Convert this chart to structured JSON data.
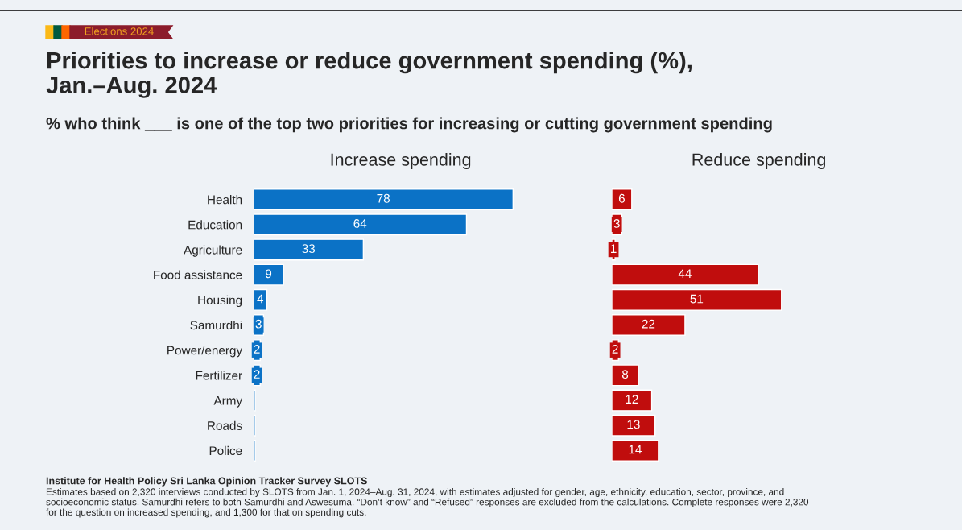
{
  "chart_data": [
    {
      "type": "bar",
      "orientation": "horizontal",
      "title": "Priorities to increase or reduce government spending (%), Jan.–Aug. 2024",
      "subtitle": "% who think ___ is one of the top two priorities for increasing or cutting government spending",
      "xlabel": "Increase spending",
      "categories": [
        "Health",
        "Education",
        "Agriculture",
        "Food assistance",
        "Housing",
        "Samurdhi",
        "Power/energy",
        "Fertilizer",
        "Army",
        "Roads",
        "Police"
      ],
      "values": [
        78,
        64,
        33,
        9,
        4,
        3,
        2,
        2,
        0.5,
        0.5,
        0.5
      ],
      "value_labels": [
        "78",
        "64",
        "33",
        "9",
        "4",
        "3",
        "2",
        "2",
        null,
        null,
        null
      ],
      "color": "#0b72c6",
      "tick_labels": "y",
      "annotations": [
        "Elections 2024",
        "Institute for Health Policy Sri Lanka Opinion Tracker Survey SLOTS",
        "Estimates based on 2,320 interviews conducted by SLOTS from Jan. 1, 2024–Aug. 31, 2024, with estimates adjusted for gender, age, ethnicity, education, sector, province, and socioeconomic status. Samurdhi refers to both Samurdhi and Aswesuma. “Don’t know” and “Refused” responses are excluded from the calculations. Complete responses were 2,320 for the question on increased spending, and 1,300 for that on spending cuts."
      ]
    },
    {
      "type": "bar",
      "orientation": "horizontal",
      "xlabel": "Reduce spending",
      "categories": [
        null,
        null,
        null,
        null,
        null,
        null,
        null,
        null,
        null,
        null,
        null
      ],
      "values": [
        6,
        3,
        1,
        44,
        51,
        22,
        2,
        8,
        12,
        13,
        14
      ],
      "data_labels": true,
      "color": "#c00d0d",
      "tick_labels": false
    }
  ]
}
